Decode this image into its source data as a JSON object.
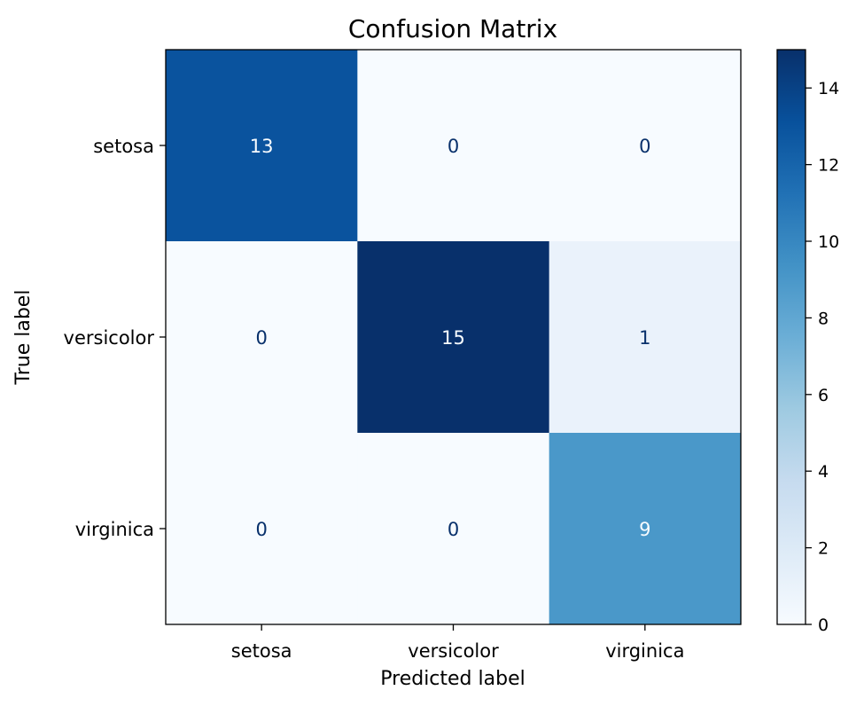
{
  "chart_data": {
    "type": "heatmap",
    "title": "Confusion Matrix",
    "xlabel": "Predicted label",
    "ylabel": "True label",
    "x_categories": [
      "setosa",
      "versicolor",
      "virginica"
    ],
    "y_categories": [
      "setosa",
      "versicolor",
      "virginica"
    ],
    "values": [
      [
        13,
        0,
        0
      ],
      [
        0,
        15,
        1
      ],
      [
        0,
        0,
        9
      ]
    ],
    "colormap": "Blues",
    "colorbar": {
      "min": 0,
      "max": 15,
      "ticks": [
        0,
        2,
        4,
        6,
        8,
        10,
        12,
        14
      ]
    },
    "colors": {
      "low": "#f7fbff",
      "high": "#08306b",
      "text_light": "#f7fbff",
      "text_dark": "#08306b"
    }
  }
}
